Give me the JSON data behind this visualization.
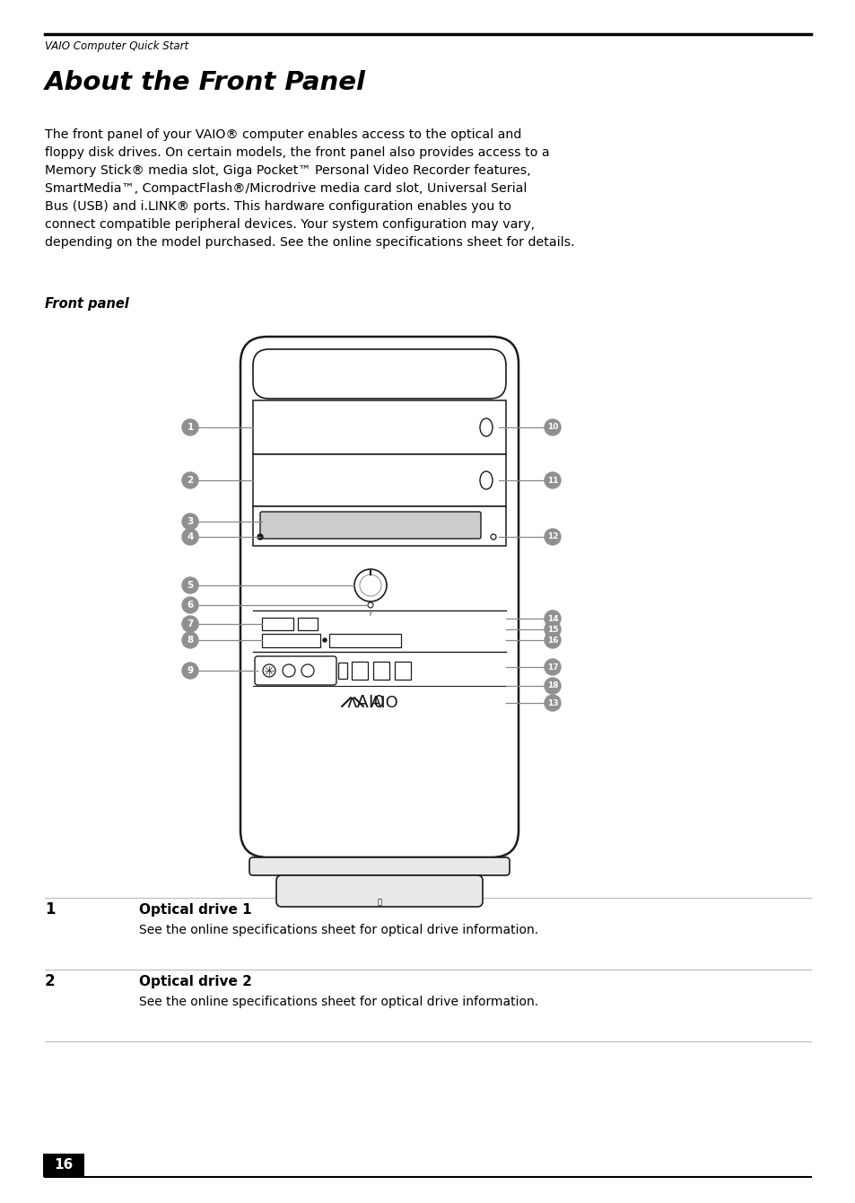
{
  "header_text": "VAIO Computer Quick Start",
  "title": "About the Front Panel",
  "body_text": "The front panel of your VAIO® computer enables access to the optical and\nfloppy disk drives. On certain models, the front panel also provides access to a\nMemory Stick® media slot, Giga Pocket™ Personal Video Recorder features,\nSmartMedia™, CompactFlash®/Microdrive media card slot, Universal Serial\nBus (USB) and i.LINK® ports. This hardware configuration enables you to\nconnect compatible peripheral devices. Your system configuration may vary,\ndepending on the model purchased. See the online specifications sheet for details.",
  "front_panel_label": "Front panel",
  "entry1_num": "1",
  "entry1_title": "Optical drive 1",
  "entry1_desc": "See the online specifications sheet for optical drive information.",
  "entry2_num": "2",
  "entry2_title": "Optical drive 2",
  "entry2_desc": "See the online specifications sheet for optical drive information.",
  "page_num": "16",
  "bg_color": "#ffffff",
  "text_color": "#000000",
  "bullet_color": "#909090",
  "bullet_text_color": "#ffffff",
  "draw_color": "#1a1a1a",
  "gray_fill": "#cccccc",
  "light_gray": "#e8e8e8"
}
